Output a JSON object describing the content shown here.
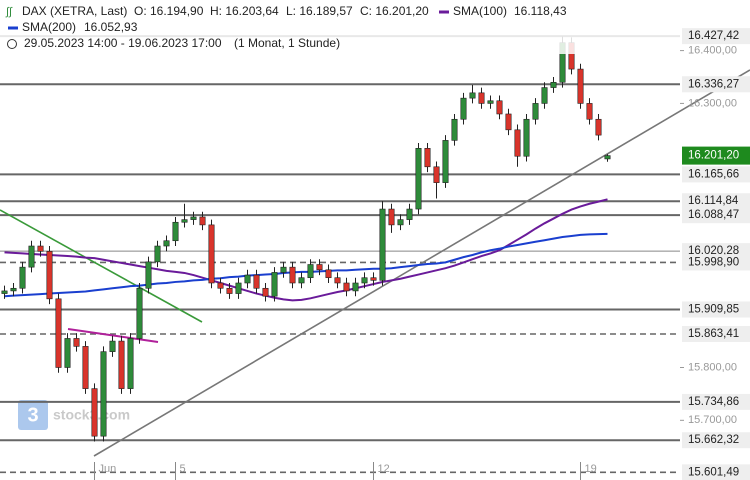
{
  "header": {
    "symbol": "DAX (XETRA, Last)",
    "open": "O: 16.194,90",
    "high": "H: 16.203,64",
    "low": "L: 16.189,57",
    "close": "C: 16.201,20",
    "range": "29.05.2023 14:00 - 19.06.2023 17:00",
    "period": "(1 Monat, 1 Stunde)"
  },
  "watermark": "stock3.com",
  "chart_data": {
    "type": "candlestick",
    "categories": [
      null,
      null,
      null,
      null,
      null,
      null,
      null,
      null,
      null,
      null,
      "Jun",
      null,
      null,
      null,
      null,
      null,
      null,
      null,
      null,
      "5",
      null,
      null,
      null,
      null,
      null,
      null,
      null,
      null,
      null,
      null,
      null,
      null,
      null,
      null,
      null,
      null,
      null,
      null,
      null,
      null,
      null,
      "12",
      null,
      null,
      null,
      null,
      null,
      null,
      null,
      null,
      null,
      null,
      null,
      null,
      null,
      null,
      null,
      null,
      null,
      null,
      null,
      null,
      null,
      null,
      "19",
      null,
      null,
      null
    ],
    "open": [
      15940,
      15945,
      15950,
      15990,
      16030,
      16020,
      15930,
      15800,
      15855,
      15840,
      15760,
      15670,
      15830,
      15850,
      15760,
      15855,
      15950,
      16000,
      16030,
      16040,
      16075,
      16080,
      16085,
      16070,
      15960,
      15950,
      15940,
      15960,
      15975,
      15950,
      15935,
      15980,
      15990,
      15960,
      15970,
      15995,
      15985,
      15970,
      15960,
      15945,
      15960,
      15970,
      15965,
      16100,
      16070,
      16080,
      16100,
      16215,
      16180,
      16150,
      16230,
      16270,
      16310,
      16320,
      16300,
      16305,
      16280,
      16250,
      16200,
      16270,
      16300,
      16330,
      16340,
      16415,
      16365,
      16300,
      16270,
      16194.9
    ],
    "high": [
      15955,
      15960,
      16000,
      16040,
      16040,
      16030,
      15940,
      15865,
      15865,
      15850,
      15770,
      15840,
      15860,
      15860,
      15865,
      15960,
      16010,
      16040,
      16050,
      16085,
      16110,
      16095,
      16095,
      16080,
      15970,
      15960,
      15970,
      15985,
      15985,
      15960,
      15990,
      16000,
      16000,
      15980,
      16005,
      16005,
      15995,
      15980,
      15970,
      15970,
      15980,
      15980,
      16115,
      16110,
      16090,
      16110,
      16225,
      16225,
      16190,
      16240,
      16280,
      16320,
      16335,
      16330,
      16315,
      16315,
      16290,
      16260,
      16280,
      16310,
      16340,
      16350,
      16427,
      16425,
      16375,
      16310,
      16280,
      16203.64
    ],
    "low": [
      15930,
      15935,
      15940,
      15980,
      16010,
      15920,
      15790,
      15790,
      15830,
      15750,
      15660,
      15660,
      15820,
      15750,
      15750,
      15845,
      15940,
      15990,
      16020,
      16030,
      16065,
      16070,
      16060,
      15950,
      15940,
      15930,
      15930,
      15950,
      15940,
      15925,
      15925,
      15970,
      15950,
      15950,
      15960,
      15975,
      15960,
      15950,
      15935,
      15935,
      15950,
      15955,
      15955,
      16055,
      16060,
      16070,
      16090,
      16170,
      16120,
      16140,
      16220,
      16260,
      16300,
      16290,
      16290,
      16270,
      16240,
      16180,
      16190,
      16260,
      16290,
      16320,
      16330,
      16355,
      16290,
      16260,
      16230,
      16189.57
    ],
    "close": [
      15945,
      15950,
      15990,
      16030,
      16020,
      15930,
      15800,
      15855,
      15840,
      15760,
      15670,
      15830,
      15850,
      15760,
      15855,
      15950,
      16000,
      16030,
      16040,
      16075,
      16080,
      16085,
      16070,
      15960,
      15950,
      15940,
      15960,
      15975,
      15950,
      15935,
      15980,
      15990,
      15960,
      15970,
      15995,
      15985,
      15970,
      15960,
      15945,
      15960,
      15970,
      15965,
      16100,
      16070,
      16080,
      16100,
      16215,
      16180,
      16150,
      16230,
      16270,
      16310,
      16320,
      16300,
      16305,
      16280,
      16250,
      16200,
      16270,
      16300,
      16330,
      16340,
      16415,
      16365,
      16300,
      16270,
      16240,
      16201.2
    ],
    "up_color": "#2e8b3a",
    "down_color": "#d9342b",
    "series": [
      {
        "name": "SMA(100)",
        "value_label": "16.118,43",
        "color": "#6a1b9a",
        "values": [
          16018,
          16017,
          16016,
          16015,
          16014,
          16013,
          16012,
          16011,
          16010,
          16008,
          16007,
          16004,
          16001,
          15998,
          15995,
          15992,
          15989,
          15986,
          15983,
          15981,
          15979,
          15975,
          15970,
          15965,
          15960,
          15955,
          15950,
          15945,
          15940,
          15936,
          15932,
          15929,
          15927,
          15928,
          15931,
          15935,
          15939,
          15943,
          15946,
          15950,
          15954,
          15958,
          15962,
          15965,
          15968,
          15972,
          15976,
          15980,
          15984,
          15988,
          15993,
          15999,
          16005,
          16011,
          16016,
          16022,
          16032,
          16042,
          16052,
          16063,
          16073,
          16082,
          16091,
          16099,
          16105,
          16110,
          16114,
          16118.43
        ]
      },
      {
        "name": "SMA(200)",
        "value_label": "16.052,93",
        "color": "#1a3fcf",
        "values": [
          15935,
          15936,
          15937,
          15938,
          15939,
          15940,
          15941,
          15942,
          15943,
          15944,
          15946,
          15948,
          15950,
          15952,
          15954,
          15955,
          15957,
          15959,
          15960,
          15962,
          15963,
          15965,
          15966,
          15968,
          15969,
          15971,
          15972,
          15974,
          15975,
          15976,
          15977,
          15979,
          15980,
          15981,
          15981,
          15982,
          15983,
          15984,
          15984,
          15985,
          15986,
          15987,
          15987,
          15988,
          15990,
          15992,
          15994,
          15996,
          15997,
          15999,
          16004,
          16009,
          16013,
          16018,
          16022,
          16025,
          16029,
          16032,
          16035,
          16038,
          16041,
          16044,
          16047,
          16049,
          16051,
          16052,
          16052.5,
          16052.93
        ]
      }
    ],
    "ylim": [
      15587,
      16439
    ],
    "yticks": [
      {
        "value": 16400,
        "label": "16.400,00"
      },
      {
        "value": 16300,
        "label": "16.300,00"
      },
      {
        "value": 15800,
        "label": "15.800,00"
      },
      {
        "value": 15700,
        "label": "15.700,00"
      }
    ],
    "levels": [
      {
        "value": 16427.42,
        "label": "16.427,42",
        "style": "solid"
      },
      {
        "value": 16336.27,
        "label": "16.336,27",
        "style": "solid"
      },
      {
        "value": 16165.66,
        "label": "16.165,66",
        "style": "solid"
      },
      {
        "value": 16114.84,
        "label": "16.114,84",
        "style": "solid"
      },
      {
        "value": 16088.47,
        "label": "16.088,47",
        "style": "solid"
      },
      {
        "value": 16020.28,
        "label": "16.020,28",
        "style": "thin"
      },
      {
        "value": 15998.9,
        "label": "15.998,90",
        "style": "dashed"
      },
      {
        "value": 15909.85,
        "label": "15.909,85",
        "style": "solid"
      },
      {
        "value": 15863.41,
        "label": "15.863,41",
        "style": "dashed"
      },
      {
        "value": 15734.86,
        "label": "15.734,86",
        "style": "solid"
      },
      {
        "value": 15662.32,
        "label": "15.662,32",
        "style": "solid"
      },
      {
        "value": 15601.49,
        "label": "15.601,49",
        "style": "dashed"
      }
    ],
    "last_price": {
      "value": 16201.2,
      "label": "16.201,20",
      "color": "#1e8a1e"
    }
  }
}
